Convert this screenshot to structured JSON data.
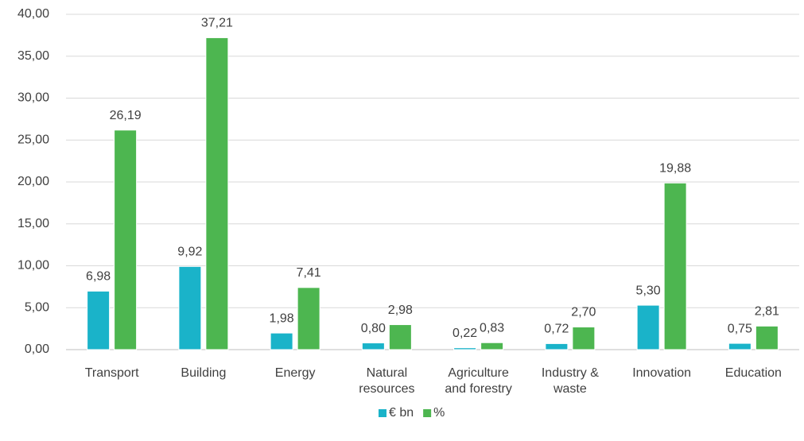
{
  "chart_data": {
    "type": "bar",
    "categories": [
      "Transport",
      "Building",
      "Energy",
      "Natural resources",
      "Agriculture and forestry",
      "Industry & waste",
      "Innovation",
      "Education"
    ],
    "series": [
      {
        "name": "€ bn",
        "color": "#1ab3c9",
        "values": [
          6.98,
          9.92,
          1.98,
          0.8,
          0.22,
          0.72,
          5.3,
          0.75
        ],
        "value_labels": [
          "6,98",
          "9,92",
          "1,98",
          "0,80",
          "0,22",
          "0,72",
          "5,30",
          "0,75"
        ]
      },
      {
        "name": "%",
        "color": "#4db650",
        "values": [
          26.19,
          37.21,
          7.41,
          2.98,
          0.83,
          2.7,
          19.88,
          2.81
        ],
        "value_labels": [
          "26,19",
          "37,21",
          "7,41",
          "2,98",
          "0,83",
          "2,70",
          "19,88",
          "2,81"
        ]
      }
    ],
    "ylim": [
      0,
      40
    ],
    "yticks": [
      {
        "value": 0,
        "label": "0,00"
      },
      {
        "value": 5,
        "label": "5,00"
      },
      {
        "value": 10,
        "label": "10,00"
      },
      {
        "value": 15,
        "label": "15,00"
      },
      {
        "value": 20,
        "label": "20,00"
      },
      {
        "value": 25,
        "label": "25,00"
      },
      {
        "value": 30,
        "label": "30,00"
      },
      {
        "value": 35,
        "label": "35,00"
      },
      {
        "value": 40,
        "label": "40,00"
      }
    ],
    "grid": true,
    "legend": "bottom"
  }
}
